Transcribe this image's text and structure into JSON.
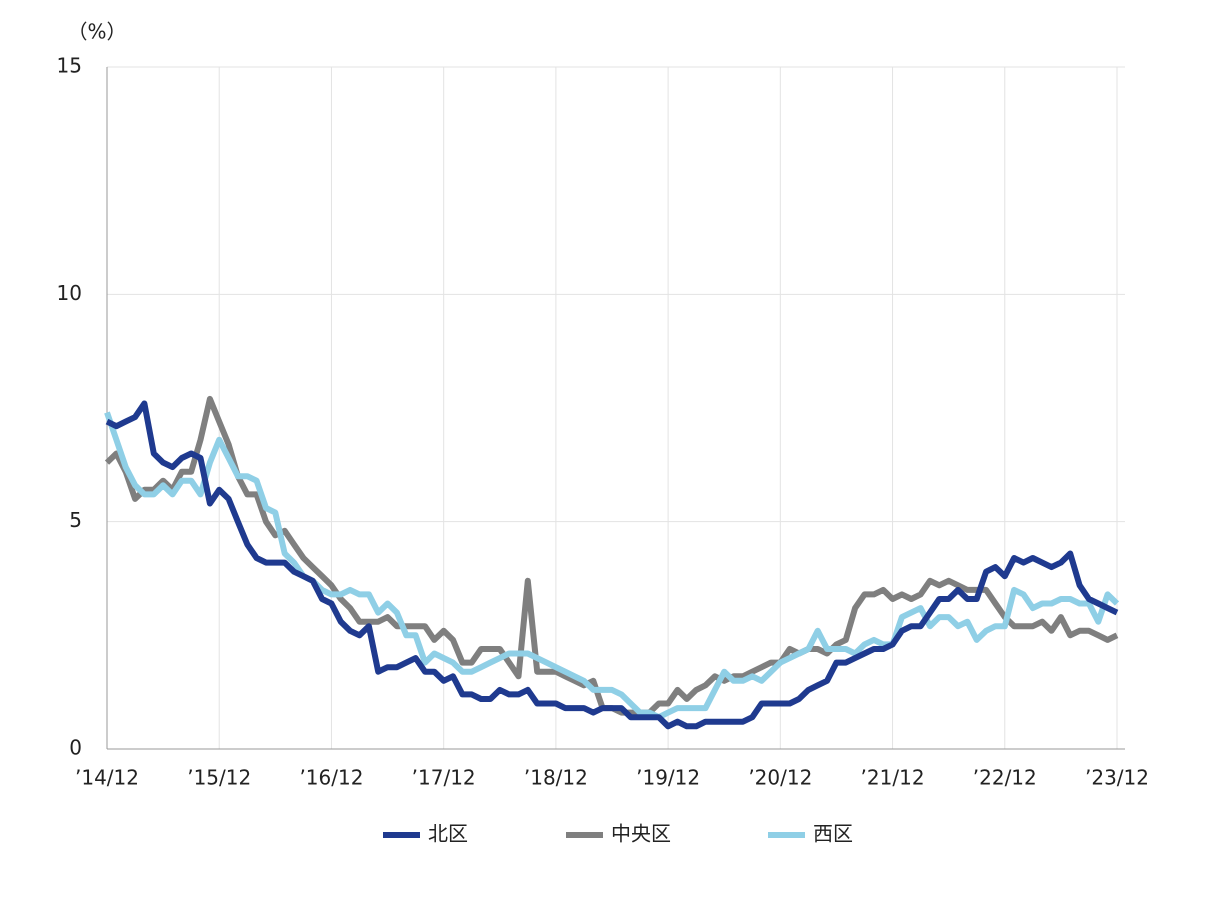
{
  "chart_data": {
    "type": "line",
    "y_label": "（%）",
    "categories": [
      "’14/12",
      null,
      null,
      null,
      null,
      null,
      null,
      null,
      null,
      null,
      null,
      null,
      "’15/12",
      null,
      null,
      null,
      null,
      null,
      null,
      null,
      null,
      null,
      null,
      null,
      "’16/12",
      null,
      null,
      null,
      null,
      null,
      null,
      null,
      null,
      null,
      null,
      null,
      "’17/12",
      null,
      null,
      null,
      null,
      null,
      null,
      null,
      null,
      null,
      null,
      null,
      "’18/12",
      null,
      null,
      null,
      null,
      null,
      null,
      null,
      null,
      null,
      null,
      null,
      "’19/12",
      null,
      null,
      null,
      null,
      null,
      null,
      null,
      null,
      null,
      null,
      null,
      "’20/12",
      null,
      null,
      null,
      null,
      null,
      null,
      null,
      null,
      null,
      null,
      null,
      "’21/12",
      null,
      null,
      null,
      null,
      null,
      null,
      null,
      null,
      null,
      null,
      null,
      "’22/12",
      null,
      null,
      null,
      null,
      null,
      null,
      null,
      null,
      null,
      null,
      null,
      "’23/12"
    ],
    "series": [
      {
        "name": "北区",
        "color": "#1f3a8f",
        "values": [
          7.2,
          7.1,
          7.2,
          7.3,
          7.6,
          6.5,
          6.3,
          6.2,
          6.4,
          6.5,
          6.4,
          5.4,
          5.7,
          5.5,
          5.0,
          4.5,
          4.2,
          4.1,
          4.1,
          4.1,
          3.9,
          3.8,
          3.7,
          3.3,
          3.2,
          2.8,
          2.6,
          2.5,
          2.7,
          1.7,
          1.8,
          1.8,
          1.9,
          2.0,
          1.7,
          1.7,
          1.5,
          1.6,
          1.2,
          1.2,
          1.1,
          1.1,
          1.3,
          1.2,
          1.2,
          1.3,
          1.0,
          1.0,
          1.0,
          0.9,
          0.9,
          0.9,
          0.8,
          0.9,
          0.9,
          0.9,
          0.7,
          0.7,
          0.7,
          0.7,
          0.5,
          0.6,
          0.5,
          0.5,
          0.6,
          0.6,
          0.6,
          0.6,
          0.6,
          0.7,
          1.0,
          1.0,
          1.0,
          1.0,
          1.1,
          1.3,
          1.4,
          1.5,
          1.9,
          1.9,
          2.0,
          2.1,
          2.2,
          2.2,
          2.3,
          2.6,
          2.7,
          2.7,
          3.0,
          3.3,
          3.3,
          3.5,
          3.3,
          3.3,
          3.9,
          4.0,
          3.8,
          4.2,
          4.1,
          4.2,
          4.1,
          4.0,
          4.1,
          4.3,
          3.6,
          3.3,
          3.2,
          3.1,
          3.0
        ]
      },
      {
        "name": "中央区",
        "color": "#7f7f7f",
        "values": [
          6.3,
          6.5,
          6.1,
          5.5,
          5.7,
          5.7,
          5.9,
          5.7,
          6.1,
          6.1,
          6.8,
          7.7,
          7.2,
          6.7,
          6.0,
          5.6,
          5.6,
          5.0,
          4.7,
          4.8,
          4.5,
          4.2,
          4.0,
          3.8,
          3.6,
          3.3,
          3.1,
          2.8,
          2.8,
          2.8,
          2.9,
          2.7,
          2.7,
          2.7,
          2.7,
          2.4,
          2.6,
          2.4,
          1.9,
          1.9,
          2.2,
          2.2,
          2.2,
          1.9,
          1.6,
          3.7,
          1.7,
          1.7,
          1.7,
          1.6,
          1.5,
          1.4,
          1.5,
          0.9,
          0.9,
          0.8,
          0.8,
          0.8,
          0.8,
          1.0,
          1.0,
          1.3,
          1.1,
          1.3,
          1.4,
          1.6,
          1.5,
          1.6,
          1.6,
          1.7,
          1.8,
          1.9,
          1.9,
          2.2,
          2.1,
          2.2,
          2.2,
          2.1,
          2.3,
          2.4,
          3.1,
          3.4,
          3.4,
          3.5,
          3.3,
          3.4,
          3.3,
          3.4,
          3.7,
          3.6,
          3.7,
          3.6,
          3.5,
          3.5,
          3.5,
          3.2,
          2.9,
          2.7,
          2.7,
          2.7,
          2.8,
          2.6,
          2.9,
          2.5,
          2.6,
          2.6,
          2.5,
          2.4,
          2.5
        ]
      },
      {
        "name": "西区",
        "color": "#8fcfe6",
        "values": [
          7.4,
          6.8,
          6.2,
          5.8,
          5.6,
          5.6,
          5.8,
          5.6,
          5.9,
          5.9,
          5.6,
          6.3,
          6.8,
          6.4,
          6.0,
          6.0,
          5.9,
          5.3,
          5.2,
          4.3,
          4.1,
          3.8,
          3.7,
          3.5,
          3.4,
          3.4,
          3.5,
          3.4,
          3.4,
          3.0,
          3.2,
          3.0,
          2.5,
          2.5,
          1.9,
          2.1,
          2.0,
          1.9,
          1.7,
          1.7,
          1.8,
          1.9,
          2.0,
          2.1,
          2.1,
          2.1,
          2.0,
          1.9,
          1.8,
          1.7,
          1.6,
          1.5,
          1.3,
          1.3,
          1.3,
          1.2,
          1.0,
          0.8,
          0.8,
          0.7,
          0.8,
          0.9,
          0.9,
          0.9,
          0.9,
          1.3,
          1.7,
          1.5,
          1.5,
          1.6,
          1.5,
          1.7,
          1.9,
          2.0,
          2.1,
          2.2,
          2.6,
          2.2,
          2.2,
          2.2,
          2.1,
          2.3,
          2.4,
          2.3,
          2.3,
          2.9,
          3.0,
          3.1,
          2.7,
          2.9,
          2.9,
          2.7,
          2.8,
          2.4,
          2.6,
          2.7,
          2.7,
          3.5,
          3.4,
          3.1,
          3.2,
          3.2,
          3.3,
          3.3,
          3.2,
          3.2,
          2.8,
          3.4,
          3.2
        ]
      }
    ],
    "ylim": [
      0,
      15
    ],
    "yticks": [
      0,
      5,
      10,
      15
    ],
    "grid": true
  }
}
